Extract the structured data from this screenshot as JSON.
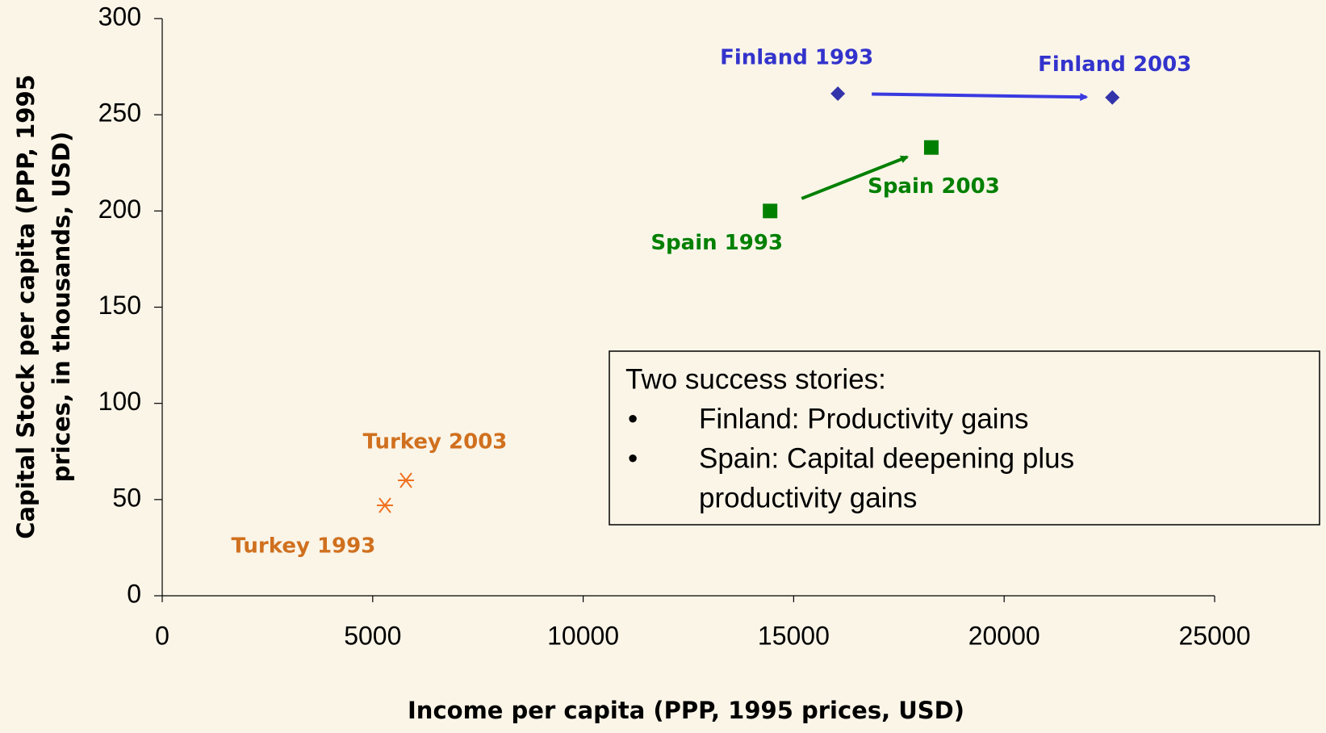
{
  "chart_data": {
    "type": "scatter",
    "xlabel": "Income per capita (PPP, 1995 prices, USD)",
    "ylabel": [
      "Capital Stock per capita (PPP, 1995",
      "prices, in thousands, USD)"
    ],
    "xlim": [
      0,
      25000
    ],
    "xticks": [
      0,
      5000,
      10000,
      15000,
      20000,
      25000
    ],
    "ylim": [
      0,
      300
    ],
    "yticks": [
      0,
      50,
      100,
      150,
      200,
      250,
      300
    ],
    "series": [
      {
        "name": "Finland",
        "color": "#3333aa",
        "label_color": "#3333cc",
        "marker": "diamond",
        "arrow": true,
        "x": [
          16050,
          22570
        ],
        "values": [
          261,
          259
        ],
        "labels": [
          "Finland 1993",
          "Finland 2003"
        ]
      },
      {
        "name": "Spain",
        "color": "#008000",
        "label_color": "#008000",
        "marker": "square",
        "arrow": true,
        "x": [
          14440,
          18270
        ],
        "values": [
          200,
          233
        ],
        "labels": [
          "Spain 1993",
          "Spain 2003"
        ]
      },
      {
        "name": "Turkey",
        "color": "#f07020",
        "label_color": "#d0701e",
        "marker": "asterisk",
        "arrow": false,
        "x": [
          5290,
          5790
        ],
        "values": [
          47,
          60
        ],
        "labels": [
          "Turkey 1993",
          "Turkey 2003"
        ]
      }
    ],
    "annotation": {
      "title": "Two success stories:",
      "items": [
        "Finland: Productivity gains",
        [
          "Spain: Capital deepening plus",
          "productivity gains"
        ]
      ]
    }
  }
}
